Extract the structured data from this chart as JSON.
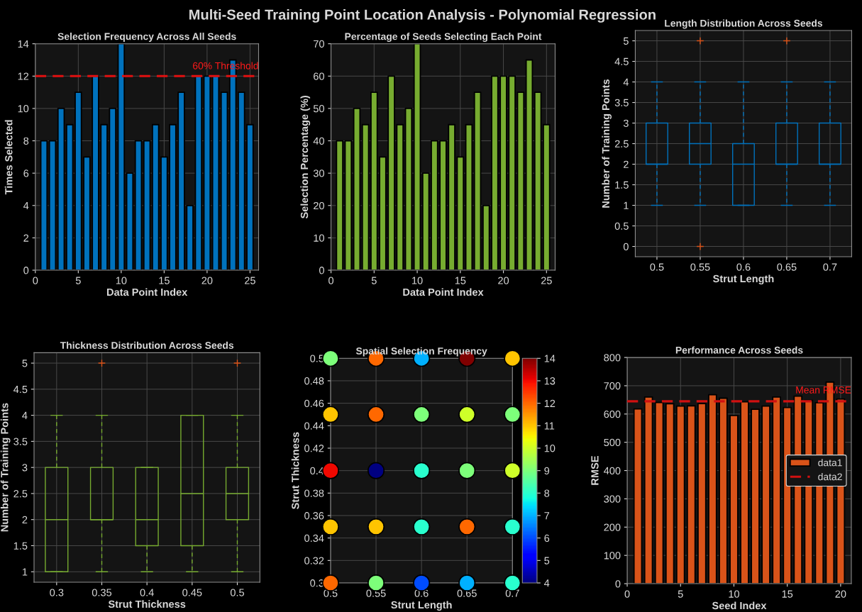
{
  "chart_data": [
    {
      "type": "other",
      "title": "Multi-Seed Training Point Location Analysis - Polynomial Regression"
    },
    {
      "type": "bar",
      "title": "Selection Frequency Across All Seeds",
      "xlabel": "Data Point Index",
      "ylabel": "Times Selected",
      "x": [
        1,
        2,
        3,
        4,
        5,
        6,
        7,
        8,
        9,
        10,
        11,
        12,
        13,
        14,
        15,
        16,
        17,
        18,
        19,
        20,
        21,
        22,
        23,
        24,
        25
      ],
      "values": [
        8,
        8,
        10,
        9,
        11,
        7,
        12,
        9,
        10,
        14,
        6,
        8,
        8,
        9,
        7,
        9,
        11,
        4,
        12,
        12,
        12,
        11,
        13,
        11,
        9
      ],
      "color": "#0072bd",
      "xlim": [
        0,
        26
      ],
      "xticks": [
        0,
        5,
        10,
        15,
        20,
        25
      ],
      "ylim": [
        0,
        14
      ],
      "yticks": [
        0,
        2,
        4,
        6,
        8,
        10,
        12,
        14
      ],
      "grid": true,
      "ref_lines": [
        {
          "axis": "y",
          "value": 12,
          "label": "60% Threshold",
          "color": "#e01010",
          "line_style": "dashed"
        }
      ]
    },
    {
      "type": "bar",
      "title": "Percentage of Seeds Selecting Each Point",
      "xlabel": "Data Point Index",
      "ylabel": "Selection Percentage (%)",
      "x": [
        1,
        2,
        3,
        4,
        5,
        6,
        7,
        8,
        9,
        10,
        11,
        12,
        13,
        14,
        15,
        16,
        17,
        18,
        19,
        20,
        21,
        22,
        23,
        24,
        25
      ],
      "values": [
        40,
        40,
        50,
        45,
        55,
        35,
        60,
        45,
        50,
        70,
        30,
        40,
        40,
        45,
        35,
        45,
        55,
        20,
        60,
        60,
        60,
        55,
        65,
        55,
        45
      ],
      "color": "#77ac30",
      "xlim": [
        0,
        26
      ],
      "xticks": [
        0,
        5,
        10,
        15,
        20,
        25
      ],
      "ylim": [
        0,
        70
      ],
      "yticks": [
        0,
        10,
        20,
        30,
        40,
        50,
        60,
        70
      ],
      "grid": true
    },
    {
      "type": "box",
      "title": "Length Distribution Across Seeds",
      "xlabel": "Strut Length",
      "ylabel": "Number of Training Points",
      "categories": [
        "0.5",
        "0.55",
        "0.6",
        "0.65",
        "0.7"
      ],
      "series": [
        {
          "color": "#0072bd",
          "boxes": [
            {
              "low": 1,
              "q1": 2,
              "median": 2,
              "q3": 3,
              "high": 4
            },
            {
              "low": 1,
              "q1": 2,
              "median": 2.5,
              "q3": 3,
              "high": 4,
              "outliers": [
                5,
                0
              ]
            },
            {
              "low": 1,
              "q1": 1,
              "median": 2,
              "q3": 2.5,
              "high": 4
            },
            {
              "low": 1,
              "q1": 2,
              "median": 2,
              "q3": 3,
              "high": 4,
              "outliers": [
                5
              ]
            },
            {
              "low": 1,
              "q1": 2,
              "median": 2,
              "q3": 3,
              "high": 4
            }
          ]
        }
      ],
      "ylim": [
        -0.25,
        5.25
      ],
      "yticks": [
        0,
        0.5,
        1,
        1.5,
        2,
        2.5,
        3,
        3.5,
        4,
        4.5,
        5
      ],
      "grid": true
    },
    {
      "type": "box",
      "title": "Thickness Distribution Across Seeds",
      "xlabel": "Strut Thickness",
      "ylabel": "Number of Training Points",
      "categories": [
        "0.3",
        "0.35",
        "0.4",
        "0.45",
        "0.5"
      ],
      "series": [
        {
          "color": "#77ac30",
          "boxes": [
            {
              "low": 1,
              "q1": 1,
              "median": 2,
              "q3": 3,
              "high": 4
            },
            {
              "low": 1,
              "q1": 2,
              "median": 2,
              "q3": 3,
              "high": 4,
              "outliers": [
                5
              ]
            },
            {
              "low": 1,
              "q1": 1.5,
              "median": 2,
              "q3": 3,
              "high": 3
            },
            {
              "low": 1,
              "q1": 1.5,
              "median": 2.5,
              "q3": 4,
              "high": 4
            },
            {
              "low": 1,
              "q1": 2,
              "median": 2.5,
              "q3": 3,
              "high": 4,
              "outliers": [
                5
              ]
            }
          ]
        }
      ],
      "ylim": [
        0.8,
        5.2
      ],
      "yticks": [
        1,
        1.5,
        2,
        2.5,
        3,
        3.5,
        4,
        4.5,
        5
      ],
      "grid": true
    },
    {
      "type": "scatter",
      "title": "Spatial Selection Frequency",
      "xlabel": "Strut Length",
      "ylabel": "Strut Thickness",
      "x": [
        0.5,
        0.55,
        0.6,
        0.65,
        0.7,
        0.5,
        0.55,
        0.6,
        0.65,
        0.7,
        0.5,
        0.55,
        0.6,
        0.65,
        0.7,
        0.5,
        0.55,
        0.6,
        0.65,
        0.7,
        0.5,
        0.55,
        0.6,
        0.65,
        0.7
      ],
      "values": [
        0.5,
        0.5,
        0.5,
        0.5,
        0.5,
        0.45,
        0.45,
        0.45,
        0.45,
        0.45,
        0.4,
        0.4,
        0.4,
        0.4,
        0.4,
        0.35,
        0.35,
        0.35,
        0.35,
        0.35,
        0.3,
        0.3,
        0.3,
        0.3,
        0.3
      ],
      "cvalues": [
        9,
        12,
        7,
        14,
        11,
        11,
        12,
        9,
        10,
        9,
        13,
        4,
        8,
        9,
        10,
        11,
        11,
        8,
        12,
        8,
        12,
        9,
        6,
        7,
        8
      ],
      "clim": [
        4,
        14
      ],
      "cticks": [
        4,
        5,
        6,
        7,
        8,
        9,
        10,
        11,
        12,
        13,
        14
      ],
      "marker": "circle",
      "xlim": [
        0.5,
        0.7
      ],
      "xticks": [
        0.5,
        0.55,
        0.6,
        0.65,
        0.7
      ],
      "ylim": [
        0.3,
        0.5
      ],
      "yticks": [
        0.3,
        0.32,
        0.34,
        0.36,
        0.38,
        0.4,
        0.42,
        0.44,
        0.46,
        0.48,
        0.5
      ],
      "grid": true
    },
    {
      "type": "bar",
      "title": "Performance Across Seeds",
      "xlabel": "Seed Index",
      "ylabel": "RMSE",
      "series": [
        {
          "name": "data1",
          "type": "bar",
          "color": "#d95319",
          "x": [
            1,
            2,
            3,
            4,
            5,
            6,
            7,
            8,
            9,
            10,
            11,
            12,
            13,
            14,
            15,
            16,
            17,
            18,
            19,
            20
          ],
          "values": [
            618,
            660,
            641,
            636,
            628,
            629,
            637,
            668,
            656,
            595,
            643,
            617,
            628,
            660,
            623,
            663,
            648,
            640,
            713,
            653
          ]
        },
        {
          "name": "data2",
          "type": "line",
          "color": "#d01010",
          "line_style": "dashed",
          "x": [
            0,
            21
          ],
          "values": [
            645,
            645
          ]
        }
      ],
      "annotations": [
        {
          "text": "Mean RMSE",
          "x": 21,
          "y": 645
        }
      ],
      "xlim": [
        0,
        21
      ],
      "xticks": [
        0,
        5,
        10,
        15,
        20
      ],
      "ylim": [
        0,
        800
      ],
      "yticks": [
        0,
        100,
        200,
        300,
        400,
        500,
        600,
        700,
        800
      ],
      "grid": true,
      "legend": "right"
    }
  ]
}
